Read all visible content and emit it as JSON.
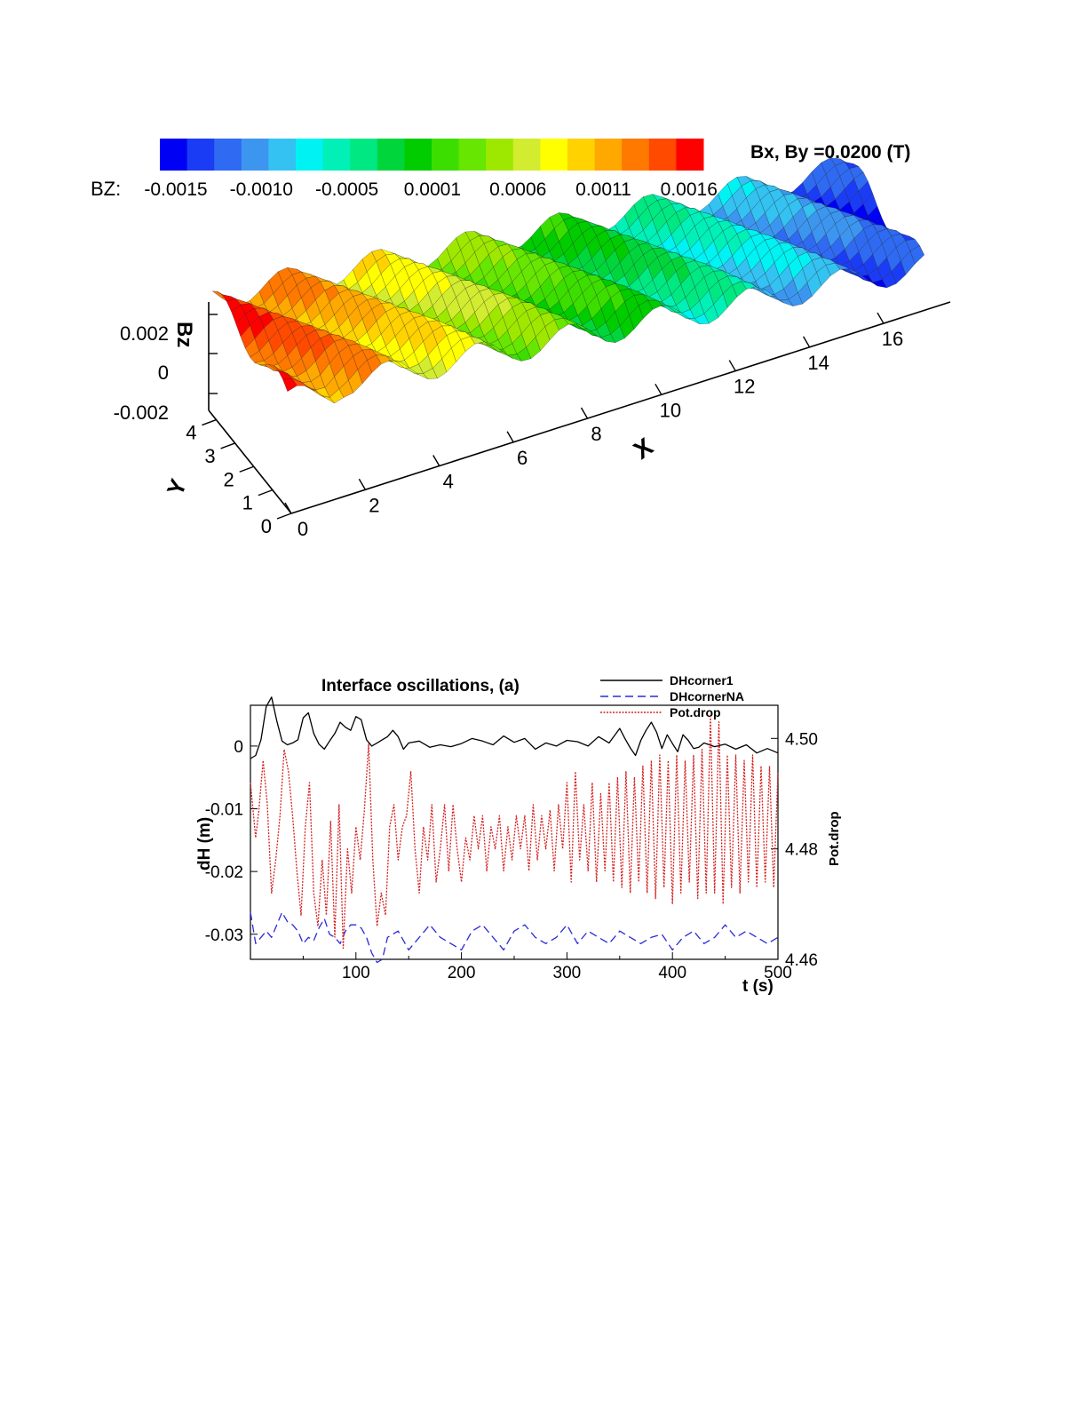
{
  "chart_data": [
    {
      "type": "surface3d",
      "title": "Bx, By =0.0200 (T)",
      "colorbar": {
        "label": "BZ:",
        "tick_labels": [
          "-0.0015",
          "-0.0010",
          "-0.0005",
          "0.0001",
          "0.0006",
          "0.0011",
          "0.0016"
        ],
        "range": [
          -0.0018,
          0.0019
        ],
        "colors": [
          "#0000f5",
          "#1b3cf5",
          "#2f6af2",
          "#3c96f0",
          "#33c2f2",
          "#00f2f2",
          "#00f0b8",
          "#00e882",
          "#00d63c",
          "#00cc00",
          "#3cde00",
          "#66e600",
          "#9ee800",
          "#d2ec30",
          "#ffff00",
          "#ffd200",
          "#ffa800",
          "#ff7800",
          "#ff4a00",
          "#ff0000"
        ]
      },
      "zlabel": "Bz",
      "xlabel": "X",
      "ylabel": "Y",
      "x_ticks": [
        "0",
        "2",
        "4",
        "6",
        "8",
        "10",
        "12",
        "14",
        "16"
      ],
      "y_ticks": [
        "0",
        "1",
        "2",
        "3",
        "4"
      ],
      "z_ticks": [
        "0.002",
        "0",
        "-0.002"
      ],
      "xlim": [
        0,
        17
      ],
      "ylim": [
        0,
        4
      ],
      "zlim": [
        -0.002,
        0.002
      ]
    },
    {
      "type": "line",
      "title": "Interface oscillations,  (a)",
      "xlabel": "t (s)",
      "ylabel": "dH (m)",
      "y2label": "Pot.drop",
      "xlim": [
        0,
        500
      ],
      "ylim": [
        -0.034,
        0.0065
      ],
      "y2lim": [
        4.46,
        4.506
      ],
      "x_ticks": [
        "100",
        "200",
        "300",
        "400",
        "500"
      ],
      "y_ticks": [
        "0",
        "-0.01",
        "-0.02",
        "-0.03"
      ],
      "y2_ticks": [
        "4.50",
        "4.48",
        "4.46"
      ],
      "legend_position": "top-right",
      "series": [
        {
          "name": "DHcorner1",
          "color": "#000000",
          "axis": "left",
          "x": [
            0,
            5,
            10,
            15,
            20,
            25,
            30,
            35,
            40,
            45,
            50,
            55,
            60,
            65,
            70,
            75,
            80,
            85,
            90,
            95,
            100,
            105,
            110,
            115,
            120,
            125,
            130,
            135,
            140,
            145,
            150,
            160,
            170,
            180,
            190,
            200,
            210,
            220,
            230,
            240,
            250,
            260,
            270,
            280,
            290,
            300,
            310,
            320,
            330,
            340,
            350,
            355,
            360,
            365,
            370,
            375,
            380,
            385,
            390,
            395,
            400,
            405,
            410,
            415,
            420,
            425,
            430,
            440,
            450,
            460,
            470,
            480,
            490,
            500
          ],
          "y": [
            -0.002,
            -0.0015,
            0.001,
            0.0063,
            0.0078,
            0.004,
            0.0008,
            0.0002,
            0.0005,
            0.001,
            0.0045,
            0.0053,
            0.002,
            0.0003,
            -0.0005,
            0.0008,
            0.002,
            0.0038,
            0.003,
            0.0025,
            0.0047,
            0.0042,
            0.001,
            0.0,
            0.0005,
            0.001,
            0.0015,
            0.0025,
            0.0015,
            -0.0005,
            0.0005,
            0.0008,
            -0.0002,
            0.0002,
            -0.0001,
            0.0004,
            0.0012,
            0.0008,
            0.0002,
            0.0016,
            0.0006,
            0.0012,
            -0.0005,
            0.0005,
            0.0,
            0.0009,
            0.0007,
            0.0,
            0.0015,
            0.0005,
            0.0028,
            0.0012,
            -0.0003,
            -0.0015,
            0.0009,
            0.0025,
            0.0038,
            0.0022,
            -0.0004,
            0.0018,
            0.0004,
            -0.0009,
            0.0018,
            0.0009,
            -0.0004,
            -0.0002,
            0.0005,
            -0.0001,
            0.0003,
            -0.0005,
            0.0002,
            -0.0011,
            -0.0004,
            -0.0011
          ]
        },
        {
          "name": "DHcornerNA",
          "color": "#2b2bd8",
          "axis": "left",
          "x": [
            0,
            5,
            10,
            15,
            20,
            25,
            30,
            35,
            40,
            45,
            50,
            55,
            60,
            65,
            70,
            75,
            80,
            85,
            90,
            95,
            100,
            105,
            110,
            115,
            120,
            125,
            130,
            140,
            150,
            160,
            170,
            180,
            190,
            200,
            210,
            220,
            230,
            240,
            250,
            260,
            270,
            280,
            290,
            300,
            310,
            320,
            330,
            340,
            350,
            360,
            370,
            380,
            390,
            400,
            410,
            420,
            430,
            440,
            450,
            460,
            470,
            480,
            490,
            500
          ],
          "y": [
            -0.0265,
            -0.0315,
            -0.0305,
            -0.0295,
            -0.0305,
            -0.0285,
            -0.0265,
            -0.028,
            -0.0285,
            -0.0295,
            -0.0315,
            -0.0305,
            -0.031,
            -0.029,
            -0.0275,
            -0.03,
            -0.0305,
            -0.0315,
            -0.0295,
            -0.0285,
            -0.0285,
            -0.029,
            -0.0305,
            -0.033,
            -0.0345,
            -0.034,
            -0.0305,
            -0.0295,
            -0.0325,
            -0.0305,
            -0.0285,
            -0.0305,
            -0.0315,
            -0.0325,
            -0.0295,
            -0.0285,
            -0.0305,
            -0.0325,
            -0.0295,
            -0.0285,
            -0.0305,
            -0.0315,
            -0.0305,
            -0.0285,
            -0.0315,
            -0.0295,
            -0.0305,
            -0.0315,
            -0.0295,
            -0.0305,
            -0.0315,
            -0.0305,
            -0.03,
            -0.0325,
            -0.0305,
            -0.0295,
            -0.0315,
            -0.0305,
            -0.0285,
            -0.0305,
            -0.0295,
            -0.0305,
            -0.0315,
            -0.0305
          ]
        },
        {
          "name": "Pot.drop",
          "color": "#d62020",
          "axis": "right",
          "x": [
            0,
            5,
            8,
            12,
            16,
            20,
            24,
            28,
            32,
            36,
            40,
            44,
            48,
            52,
            56,
            60,
            64,
            68,
            72,
            76,
            80,
            84,
            88,
            92,
            96,
            100,
            104,
            108,
            112,
            116,
            120,
            124,
            128,
            132,
            136,
            140,
            144,
            148,
            152,
            156,
            160,
            164,
            168,
            172,
            176,
            180,
            184,
            188,
            192,
            196,
            200,
            204,
            208,
            212,
            216,
            220,
            224,
            228,
            232,
            236,
            240,
            244,
            248,
            252,
            256,
            260,
            264,
            268,
            272,
            276,
            280,
            284,
            288,
            292,
            296,
            300,
            304,
            308,
            312,
            316,
            320,
            324,
            328,
            332,
            336,
            340,
            344,
            348,
            352,
            356,
            360,
            364,
            368,
            372,
            376,
            380,
            384,
            388,
            392,
            396,
            400,
            404,
            408,
            412,
            416,
            420,
            424,
            428,
            432,
            436,
            440,
            444,
            448,
            452,
            456,
            460,
            464,
            468,
            472,
            476,
            480,
            484,
            488,
            492,
            496,
            500
          ],
          "y": [
            4.492,
            4.482,
            4.487,
            4.496,
            4.488,
            4.472,
            4.478,
            4.486,
            4.498,
            4.494,
            4.486,
            4.476,
            4.468,
            4.484,
            4.492,
            4.472,
            4.466,
            4.478,
            4.468,
            4.485,
            4.464,
            4.488,
            4.462,
            4.48,
            4.472,
            4.484,
            4.478,
            4.487,
            4.499,
            4.478,
            4.466,
            4.472,
            4.468,
            4.484,
            4.488,
            4.478,
            4.484,
            4.486,
            4.494,
            4.48,
            4.472,
            4.484,
            4.478,
            4.488,
            4.474,
            4.48,
            4.488,
            4.476,
            4.488,
            4.48,
            4.474,
            4.482,
            4.478,
            4.486,
            4.48,
            4.486,
            4.476,
            4.484,
            4.48,
            4.486,
            4.476,
            4.484,
            4.478,
            4.486,
            4.48,
            4.486,
            4.476,
            4.488,
            4.478,
            4.486,
            4.48,
            4.487,
            4.476,
            4.488,
            4.48,
            4.492,
            4.474,
            4.494,
            4.478,
            4.488,
            4.476,
            4.492,
            4.474,
            4.49,
            4.476,
            4.492,
            4.474,
            4.493,
            4.473,
            4.494,
            4.472,
            4.493,
            4.474,
            4.495,
            4.472,
            4.496,
            4.471,
            4.497,
            4.473,
            4.496,
            4.47,
            4.497,
            4.472,
            4.496,
            4.474,
            4.497,
            4.471,
            4.498,
            4.472,
            4.504,
            4.472,
            4.503,
            4.47,
            4.497,
            4.473,
            4.497,
            4.472,
            4.496,
            4.474,
            4.497,
            4.473,
            4.495,
            4.474,
            4.495,
            4.473,
            4.494
          ]
        }
      ]
    }
  ]
}
